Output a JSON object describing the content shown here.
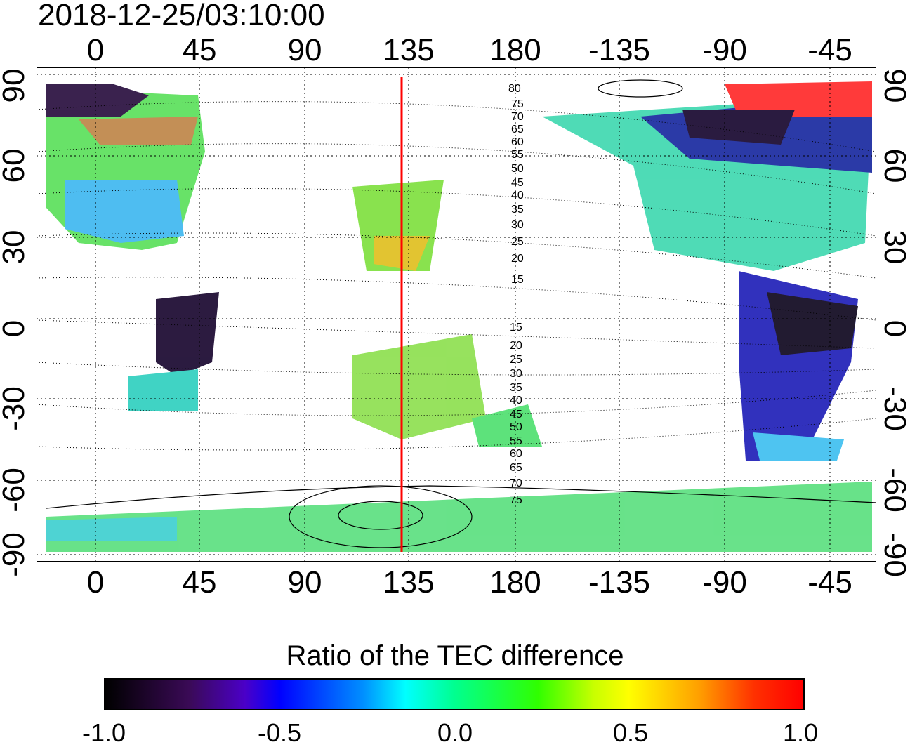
{
  "title": "2018-12-25/03:10:00",
  "lon_labels_top": [
    "0",
    "45",
    "90",
    "135",
    "180",
    "-135",
    "-90",
    "-45"
  ],
  "lon_labels_bottom": [
    "0",
    "45",
    "90",
    "135",
    "180",
    "-135",
    "-90",
    "-45"
  ],
  "lat_labels_left": [
    "90",
    "60",
    "30",
    "0",
    "-30",
    "-60",
    "-90"
  ],
  "lat_labels_right": [
    "90",
    "60",
    "30",
    "0",
    "-30",
    "-60",
    "-90"
  ],
  "contour_labels_north": [
    "80",
    "75",
    "70",
    "65",
    "60",
    "55",
    "50",
    "45",
    "40",
    "35",
    "30",
    "25",
    "20",
    "15"
  ],
  "contour_labels_south": [
    "15",
    "20",
    "25",
    "30",
    "35",
    "40",
    "45",
    "50",
    "55",
    "60",
    "65",
    "70",
    "75"
  ],
  "terminator_longitude": 135,
  "colorbar": {
    "title": "Ratio of the TEC difference",
    "tick_labels": [
      "-1.0",
      "-0.5",
      "0.0",
      "0.5",
      "1.0"
    ],
    "range": [
      -1.0,
      1.0
    ]
  },
  "colors": {
    "terminator": "#ff0000",
    "grid": "#000000",
    "background": "#ffffff"
  }
}
